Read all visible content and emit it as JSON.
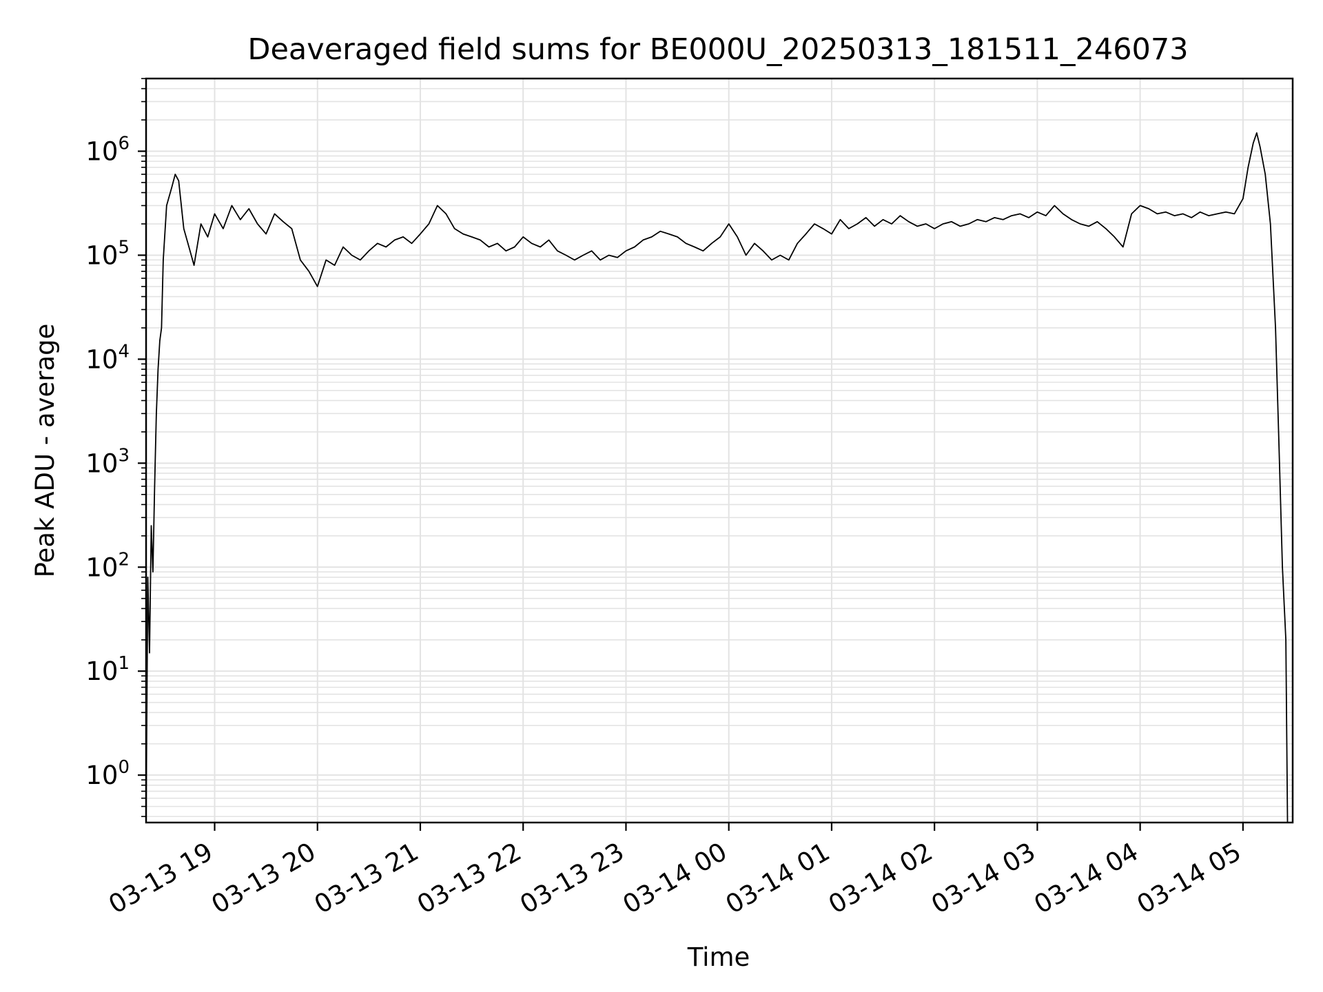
{
  "chart_data": {
    "type": "line",
    "title": "Deaveraged field sums for BE000U_20250313_181511_246073",
    "xlabel": "Time",
    "ylabel": "Peak ADU - average",
    "yscale": "log",
    "ylim": [
      0.35,
      5000000
    ],
    "xlim": [
      "2025-03-13 18:20",
      "2025-03-14 05:29"
    ],
    "grid": true,
    "x_tick_labels": [
      "03-13 19",
      "03-13 20",
      "03-13 21",
      "03-13 22",
      "03-13 23",
      "03-14 00",
      "03-14 01",
      "03-14 02",
      "03-14 03",
      "03-14 04",
      "03-14 05"
    ],
    "x_ticks": [
      "2025-03-13 19:00",
      "2025-03-13 20:00",
      "2025-03-13 21:00",
      "2025-03-13 22:00",
      "2025-03-13 23:00",
      "2025-03-14 00:00",
      "2025-03-14 01:00",
      "2025-03-14 02:00",
      "2025-03-14 03:00",
      "2025-03-14 04:00",
      "2025-03-14 05:00"
    ],
    "y_tick_labels": [
      {
        "base": "10",
        "exp": "0",
        "value": 1
      },
      {
        "base": "10",
        "exp": "1",
        "value": 10
      },
      {
        "base": "10",
        "exp": "2",
        "value": 100
      },
      {
        "base": "10",
        "exp": "3",
        "value": 1000
      },
      {
        "base": "10",
        "exp": "4",
        "value": 10000
      },
      {
        "base": "10",
        "exp": "5",
        "value": 100000
      },
      {
        "base": "10",
        "exp": "6",
        "value": 1000000
      }
    ],
    "series": [
      {
        "color": "#000000",
        "points": [
          [
            "2025-03-13 18:20",
            0.2
          ],
          [
            "2025-03-13 18:21",
            80
          ],
          [
            "2025-03-13 18:22",
            15
          ],
          [
            "2025-03-13 18:23",
            250
          ],
          [
            "2025-03-13 18:24",
            90
          ],
          [
            "2025-03-13 18:25",
            600
          ],
          [
            "2025-03-13 18:26",
            3000
          ],
          [
            "2025-03-13 18:27",
            8000
          ],
          [
            "2025-03-13 18:28",
            15000
          ],
          [
            "2025-03-13 18:29",
            20000
          ],
          [
            "2025-03-13 18:30",
            90000
          ],
          [
            "2025-03-13 18:32",
            300000
          ],
          [
            "2025-03-13 18:35",
            450000
          ],
          [
            "2025-03-13 18:37",
            600000
          ],
          [
            "2025-03-13 18:39",
            520000
          ],
          [
            "2025-03-13 18:42",
            180000
          ],
          [
            "2025-03-13 18:45",
            120000
          ],
          [
            "2025-03-13 18:48",
            80000
          ],
          [
            "2025-03-13 18:52",
            200000
          ],
          [
            "2025-03-13 18:56",
            150000
          ],
          [
            "2025-03-13 19:00",
            250000
          ],
          [
            "2025-03-13 19:05",
            180000
          ],
          [
            "2025-03-13 19:10",
            300000
          ],
          [
            "2025-03-13 19:15",
            220000
          ],
          [
            "2025-03-13 19:20",
            280000
          ],
          [
            "2025-03-13 19:25",
            200000
          ],
          [
            "2025-03-13 19:30",
            160000
          ],
          [
            "2025-03-13 19:35",
            250000
          ],
          [
            "2025-03-13 19:40",
            210000
          ],
          [
            "2025-03-13 19:45",
            180000
          ],
          [
            "2025-03-13 19:50",
            90000
          ],
          [
            "2025-03-13 19:55",
            70000
          ],
          [
            "2025-03-13 20:00",
            50000
          ],
          [
            "2025-03-13 20:05",
            90000
          ],
          [
            "2025-03-13 20:10",
            80000
          ],
          [
            "2025-03-13 20:15",
            120000
          ],
          [
            "2025-03-13 20:20",
            100000
          ],
          [
            "2025-03-13 20:25",
            90000
          ],
          [
            "2025-03-13 20:30",
            110000
          ],
          [
            "2025-03-13 20:35",
            130000
          ],
          [
            "2025-03-13 20:40",
            120000
          ],
          [
            "2025-03-13 20:45",
            140000
          ],
          [
            "2025-03-13 20:50",
            150000
          ],
          [
            "2025-03-13 20:55",
            130000
          ],
          [
            "2025-03-13 21:00",
            160000
          ],
          [
            "2025-03-13 21:05",
            200000
          ],
          [
            "2025-03-13 21:10",
            300000
          ],
          [
            "2025-03-13 21:15",
            250000
          ],
          [
            "2025-03-13 21:20",
            180000
          ],
          [
            "2025-03-13 21:25",
            160000
          ],
          [
            "2025-03-13 21:30",
            150000
          ],
          [
            "2025-03-13 21:35",
            140000
          ],
          [
            "2025-03-13 21:40",
            120000
          ],
          [
            "2025-03-13 21:45",
            130000
          ],
          [
            "2025-03-13 21:50",
            110000
          ],
          [
            "2025-03-13 21:55",
            120000
          ],
          [
            "2025-03-13 22:00",
            150000
          ],
          [
            "2025-03-13 22:05",
            130000
          ],
          [
            "2025-03-13 22:10",
            120000
          ],
          [
            "2025-03-13 22:15",
            140000
          ],
          [
            "2025-03-13 22:20",
            110000
          ],
          [
            "2025-03-13 22:25",
            100000
          ],
          [
            "2025-03-13 22:30",
            90000
          ],
          [
            "2025-03-13 22:35",
            100000
          ],
          [
            "2025-03-13 22:40",
            110000
          ],
          [
            "2025-03-13 22:45",
            90000
          ],
          [
            "2025-03-13 22:50",
            100000
          ],
          [
            "2025-03-13 22:55",
            95000
          ],
          [
            "2025-03-13 23:00",
            110000
          ],
          [
            "2025-03-13 23:05",
            120000
          ],
          [
            "2025-03-13 23:10",
            140000
          ],
          [
            "2025-03-13 23:15",
            150000
          ],
          [
            "2025-03-13 23:20",
            170000
          ],
          [
            "2025-03-13 23:25",
            160000
          ],
          [
            "2025-03-13 23:30",
            150000
          ],
          [
            "2025-03-13 23:35",
            130000
          ],
          [
            "2025-03-13 23:40",
            120000
          ],
          [
            "2025-03-13 23:45",
            110000
          ],
          [
            "2025-03-13 23:50",
            130000
          ],
          [
            "2025-03-13 23:55",
            150000
          ],
          [
            "2025-03-14 00:00",
            200000
          ],
          [
            "2025-03-14 00:05",
            150000
          ],
          [
            "2025-03-14 00:10",
            100000
          ],
          [
            "2025-03-14 00:15",
            130000
          ],
          [
            "2025-03-14 00:20",
            110000
          ],
          [
            "2025-03-14 00:25",
            90000
          ],
          [
            "2025-03-14 00:30",
            100000
          ],
          [
            "2025-03-14 00:35",
            90000
          ],
          [
            "2025-03-14 00:40",
            130000
          ],
          [
            "2025-03-14 00:45",
            160000
          ],
          [
            "2025-03-14 00:50",
            200000
          ],
          [
            "2025-03-14 00:55",
            180000
          ],
          [
            "2025-03-14 01:00",
            160000
          ],
          [
            "2025-03-14 01:05",
            220000
          ],
          [
            "2025-03-14 01:10",
            180000
          ],
          [
            "2025-03-14 01:15",
            200000
          ],
          [
            "2025-03-14 01:20",
            230000
          ],
          [
            "2025-03-14 01:25",
            190000
          ],
          [
            "2025-03-14 01:30",
            220000
          ],
          [
            "2025-03-14 01:35",
            200000
          ],
          [
            "2025-03-14 01:40",
            240000
          ],
          [
            "2025-03-14 01:45",
            210000
          ],
          [
            "2025-03-14 01:50",
            190000
          ],
          [
            "2025-03-14 01:55",
            200000
          ],
          [
            "2025-03-14 02:00",
            180000
          ],
          [
            "2025-03-14 02:05",
            200000
          ],
          [
            "2025-03-14 02:10",
            210000
          ],
          [
            "2025-03-14 02:15",
            190000
          ],
          [
            "2025-03-14 02:20",
            200000
          ],
          [
            "2025-03-14 02:25",
            220000
          ],
          [
            "2025-03-14 02:30",
            210000
          ],
          [
            "2025-03-14 02:35",
            230000
          ],
          [
            "2025-03-14 02:40",
            220000
          ],
          [
            "2025-03-14 02:45",
            240000
          ],
          [
            "2025-03-14 02:50",
            250000
          ],
          [
            "2025-03-14 02:55",
            230000
          ],
          [
            "2025-03-14 03:00",
            260000
          ],
          [
            "2025-03-14 03:05",
            240000
          ],
          [
            "2025-03-14 03:10",
            300000
          ],
          [
            "2025-03-14 03:15",
            250000
          ],
          [
            "2025-03-14 03:20",
            220000
          ],
          [
            "2025-03-14 03:25",
            200000
          ],
          [
            "2025-03-14 03:30",
            190000
          ],
          [
            "2025-03-14 03:35",
            210000
          ],
          [
            "2025-03-14 03:40",
            180000
          ],
          [
            "2025-03-14 03:45",
            150000
          ],
          [
            "2025-03-14 03:50",
            120000
          ],
          [
            "2025-03-14 03:55",
            250000
          ],
          [
            "2025-03-14 04:00",
            300000
          ],
          [
            "2025-03-14 04:05",
            280000
          ],
          [
            "2025-03-14 04:10",
            250000
          ],
          [
            "2025-03-14 04:15",
            260000
          ],
          [
            "2025-03-14 04:20",
            240000
          ],
          [
            "2025-03-14 04:25",
            250000
          ],
          [
            "2025-03-14 04:30",
            230000
          ],
          [
            "2025-03-14 04:35",
            260000
          ],
          [
            "2025-03-14 04:40",
            240000
          ],
          [
            "2025-03-14 04:45",
            250000
          ],
          [
            "2025-03-14 04:50",
            260000
          ],
          [
            "2025-03-14 04:55",
            250000
          ],
          [
            "2025-03-14 05:00",
            350000
          ],
          [
            "2025-03-14 05:03",
            700000
          ],
          [
            "2025-03-14 05:06",
            1200000
          ],
          [
            "2025-03-14 05:08",
            1500000
          ],
          [
            "2025-03-14 05:10",
            1100000
          ],
          [
            "2025-03-14 05:13",
            600000
          ],
          [
            "2025-03-14 05:16",
            200000
          ],
          [
            "2025-03-14 05:19",
            20000
          ],
          [
            "2025-03-14 05:21",
            1500
          ],
          [
            "2025-03-14 05:23",
            100
          ],
          [
            "2025-03-14 05:25",
            20
          ],
          [
            "2025-03-14 05:26",
            0.2
          ]
        ]
      }
    ]
  }
}
